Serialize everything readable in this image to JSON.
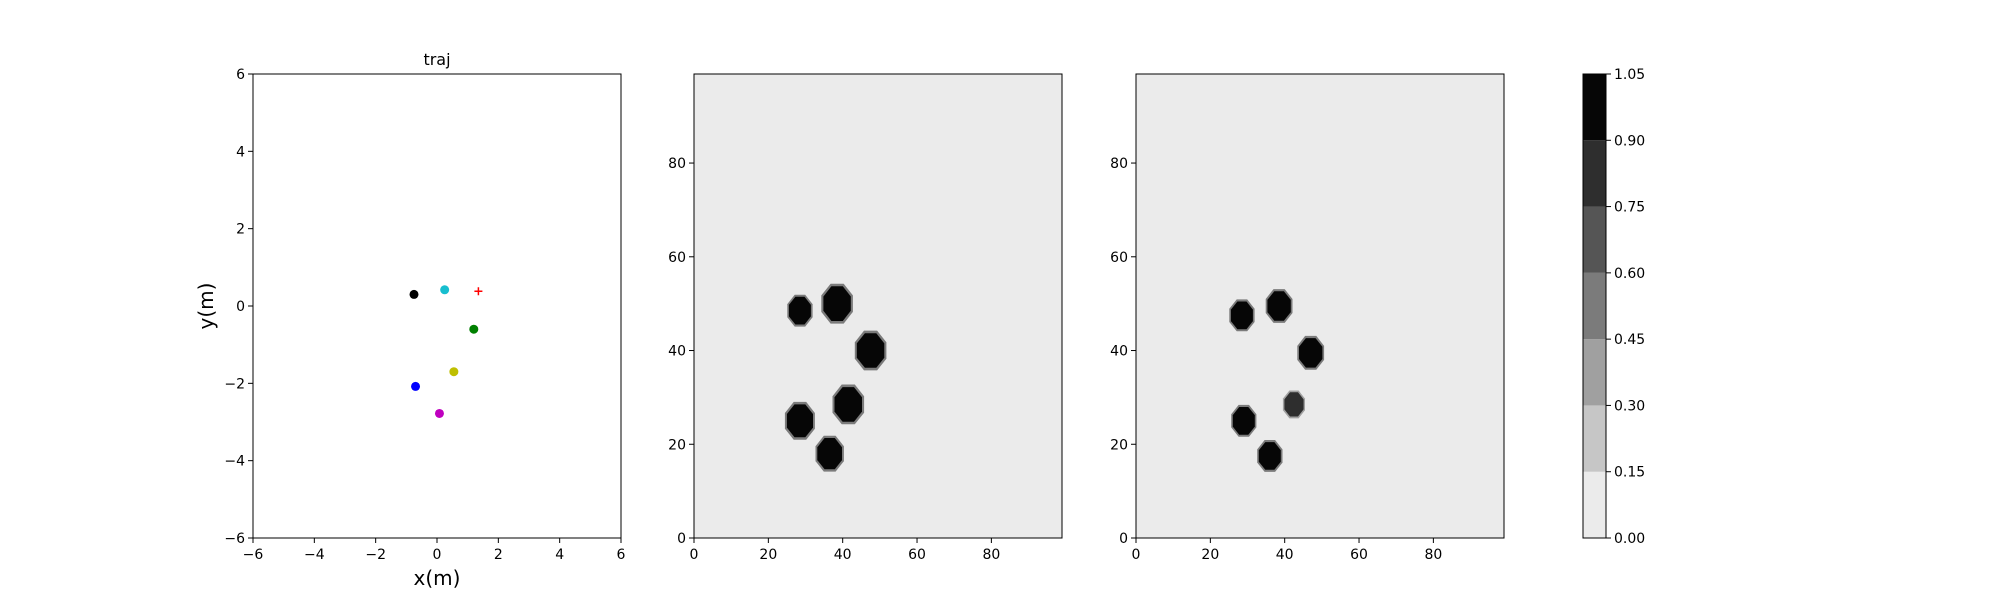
{
  "chart_data": [
    {
      "type": "scatter",
      "title": "traj",
      "xlabel": "x(m)",
      "ylabel": "y(m)",
      "xlim": [
        -6,
        6
      ],
      "ylim": [
        -6,
        6
      ],
      "xticks": [
        -6,
        -4,
        -2,
        0,
        2,
        4,
        6
      ],
      "yticks": [
        -6,
        -4,
        -2,
        0,
        2,
        4,
        6
      ],
      "grid": false,
      "points": [
        {
          "x": -0.75,
          "y": 0.3,
          "color": "#000000",
          "marker": "circle"
        },
        {
          "x": 0.25,
          "y": 0.42,
          "color": "#17becf",
          "marker": "circle"
        },
        {
          "x": 1.2,
          "y": -0.6,
          "color": "#008000",
          "marker": "circle"
        },
        {
          "x": 0.55,
          "y": -1.7,
          "color": "#bfbf00",
          "marker": "circle"
        },
        {
          "x": -0.7,
          "y": -2.08,
          "color": "#0000ff",
          "marker": "circle"
        },
        {
          "x": 0.08,
          "y": -2.78,
          "color": "#bf00bf",
          "marker": "circle"
        },
        {
          "x": 1.35,
          "y": 0.38,
          "color": "#ff0000",
          "marker": "plus"
        }
      ]
    },
    {
      "type": "heatmap",
      "xlim": [
        0,
        99
      ],
      "ylim": [
        0,
        99
      ],
      "xticks": [
        0,
        20,
        40,
        60,
        80
      ],
      "yticks": [
        0,
        20,
        40,
        60,
        80
      ],
      "background_value": 0.0,
      "blobs": [
        {
          "cx": 28.5,
          "cy": 48.5,
          "r": 3.2,
          "value": 1.0
        },
        {
          "cx": 38.5,
          "cy": 50.0,
          "r": 4.0,
          "value": 1.0
        },
        {
          "cx": 47.5,
          "cy": 40.0,
          "r": 4.0,
          "value": 1.0
        },
        {
          "cx": 41.5,
          "cy": 28.5,
          "r": 4.0,
          "value": 1.0
        },
        {
          "cx": 28.5,
          "cy": 25.0,
          "r": 3.8,
          "value": 1.0
        },
        {
          "cx": 36.5,
          "cy": 18.0,
          "r": 3.6,
          "value": 1.0
        }
      ]
    },
    {
      "type": "heatmap",
      "xlim": [
        0,
        99
      ],
      "ylim": [
        0,
        99
      ],
      "xticks": [
        0,
        20,
        40,
        60,
        80
      ],
      "yticks": [
        0,
        20,
        40,
        60,
        80
      ],
      "background_value": 0.0,
      "blobs": [
        {
          "cx": 28.5,
          "cy": 47.5,
          "r": 3.2,
          "value": 1.0
        },
        {
          "cx": 38.5,
          "cy": 49.5,
          "r": 3.4,
          "value": 1.0
        },
        {
          "cx": 47.0,
          "cy": 39.5,
          "r": 3.4,
          "value": 1.0
        },
        {
          "cx": 42.5,
          "cy": 28.5,
          "r": 2.8,
          "value": 0.8
        },
        {
          "cx": 29.0,
          "cy": 25.0,
          "r": 3.2,
          "value": 0.95
        },
        {
          "cx": 36.0,
          "cy": 17.5,
          "r": 3.2,
          "value": 1.0
        }
      ]
    }
  ],
  "colorbar": {
    "levels": [
      0.0,
      0.15,
      0.3,
      0.45,
      0.6,
      0.75,
      0.9,
      1.05
    ],
    "tick_labels": [
      "0.00",
      "0.15",
      "0.30",
      "0.45",
      "0.60",
      "0.75",
      "0.90",
      "1.05"
    ],
    "colors": [
      "#ebebeb",
      "#c6c6c6",
      "#a0a0a0",
      "#7b7b7b",
      "#555555",
      "#2e2e2e",
      "#060606"
    ]
  }
}
